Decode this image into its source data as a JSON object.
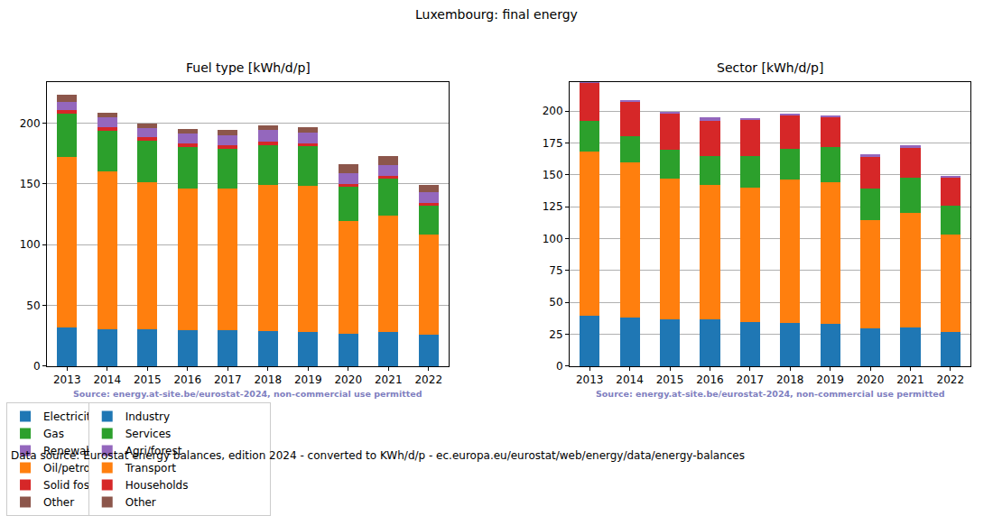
{
  "title": "Luxembourg: final energy",
  "footer": "Data source: Eurostat energy balances, edition 2024 - converted to KWh/d/p - ec.europa.eu/eurostat/web/energy/data/energy-balances",
  "chart_data": [
    {
      "type": "bar",
      "title": "Fuel type [kWh/d/p]",
      "stacked": true,
      "grid": true,
      "legend": "bottom",
      "annotations": [
        "Source: energy.at-site.be/eurostat-2024, non-commercial use permitted"
      ],
      "categories": [
        "2013",
        "2014",
        "2015",
        "2016",
        "2017",
        "2018",
        "2019",
        "2020",
        "2021",
        "2022"
      ],
      "ylim": [
        0,
        234
      ],
      "yticks": [
        0,
        50,
        100,
        150,
        200
      ],
      "series": [
        {
          "name": "Electricity",
          "color": "#1f77b4",
          "values": [
            32,
            30.5,
            30.5,
            30,
            30,
            29,
            28.5,
            26.5,
            28,
            26
          ]
        },
        {
          "name": "Oil/petrol",
          "color": "#ff7f0e",
          "values": [
            140,
            130,
            121,
            116,
            116,
            120,
            120,
            93,
            96,
            82.5
          ]
        },
        {
          "name": "Gas",
          "color": "#2ca02c",
          "values": [
            36,
            33,
            34,
            34,
            33,
            33,
            32.5,
            28,
            30,
            23.5
          ]
        },
        {
          "name": "Solid fossil",
          "color": "#d62728",
          "values": [
            3,
            3,
            3,
            3,
            3,
            2.5,
            2.5,
            2.5,
            2.5,
            2.5
          ]
        },
        {
          "name": "Renewables & biofuel",
          "color": "#9467bd",
          "values": [
            6,
            8,
            7.5,
            8,
            8,
            9.5,
            8.5,
            8.5,
            9,
            8.5
          ]
        },
        {
          "name": "Other",
          "color": "#8c564b",
          "values": [
            6,
            4,
            3.5,
            4,
            4.5,
            4,
            4.5,
            7.5,
            7.5,
            6
          ]
        }
      ]
    },
    {
      "type": "bar",
      "title": "Sector [kWh/d/p]",
      "stacked": true,
      "grid": true,
      "legend": "bottom",
      "annotations": [
        "Source: energy.at-site.be/eurostat-2024, non-commercial use permitted"
      ],
      "categories": [
        "2013",
        "2014",
        "2015",
        "2016",
        "2017",
        "2018",
        "2019",
        "2020",
        "2021",
        "2022"
      ],
      "ylim": [
        0,
        223
      ],
      "yticks": [
        0,
        25,
        50,
        75,
        100,
        125,
        150,
        175,
        200
      ],
      "series": [
        {
          "name": "Industry",
          "color": "#1f77b4",
          "values": [
            39.5,
            38,
            37,
            37,
            34.5,
            34,
            33,
            30,
            30.5,
            26.5
          ]
        },
        {
          "name": "Transport",
          "color": "#ff7f0e",
          "values": [
            128.5,
            121.5,
            110,
            105,
            105.5,
            112,
            111.5,
            84.5,
            89.5,
            77
          ]
        },
        {
          "name": "Services",
          "color": "#2ca02c",
          "values": [
            24,
            20.5,
            22.5,
            22.5,
            24.5,
            24,
            27.5,
            25,
            27.5,
            22.5
          ]
        },
        {
          "name": "Households",
          "color": "#d62728",
          "values": [
            30.5,
            27,
            29,
            28,
            28.5,
            26.5,
            23,
            25.5,
            23.5,
            22.5
          ]
        },
        {
          "name": "Agri/forest",
          "color": "#9467bd",
          "values": [
            0.5,
            1.5,
            1,
            2.5,
            1.5,
            1.5,
            1.5,
            1,
            2,
            0.5
          ]
        },
        {
          "name": "Other",
          "color": "#8c564b",
          "values": [
            0,
            0,
            0,
            0,
            0,
            0,
            0,
            0,
            0,
            0
          ]
        }
      ]
    }
  ]
}
